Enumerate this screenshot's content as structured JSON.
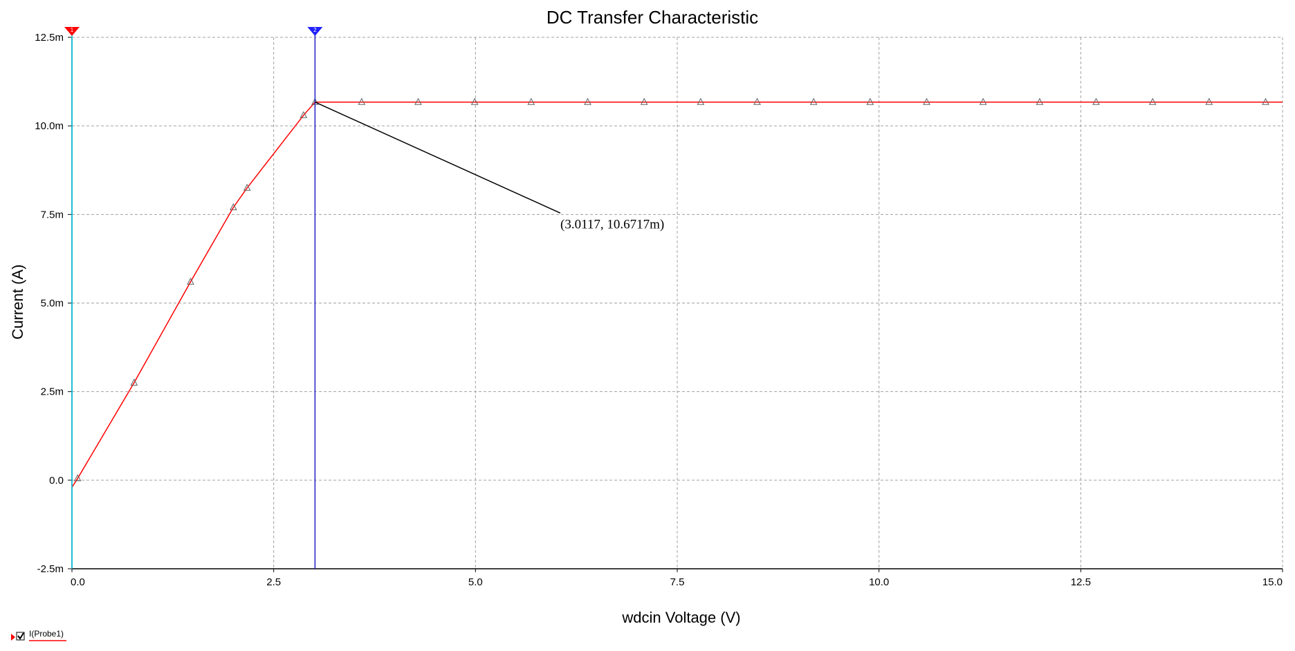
{
  "chart_data": {
    "type": "line",
    "title": "DC Transfer Characteristic",
    "xlabel": "wdcin Voltage (V)",
    "ylabel": "Current (A)",
    "xlim": [
      0,
      15
    ],
    "ylim": [
      -2.5,
      12.5
    ],
    "y_unit_scale": "m",
    "x_ticks": [
      0,
      2.5,
      5,
      7.5,
      10,
      12.5,
      15
    ],
    "x_tick_labels": [
      "0.0",
      "2.5",
      "5.0",
      "7.5",
      "10.0",
      "12.5",
      "15.0"
    ],
    "y_ticks": [
      -2.5,
      0,
      2.5,
      5,
      7.5,
      10,
      12.5
    ],
    "y_tick_labels": [
      "-2.5m",
      "0.0",
      "2.5m",
      "5.0m",
      "7.5m",
      "10.0m",
      "12.5m"
    ],
    "grid": true,
    "series": [
      {
        "name": "I(Probe1)",
        "color": "#ff0000",
        "x": [
          0,
          0.07,
          0.77,
          1.47,
          2.0,
          2.17,
          2.87,
          3.0117,
          3.59,
          4.29,
          4.99,
          5.69,
          6.39,
          7.09,
          7.79,
          8.49,
          9.19,
          9.89,
          10.59,
          11.29,
          11.99,
          12.69,
          13.39,
          14.09,
          14.79,
          15.0
        ],
        "y": [
          -0.2,
          0.05,
          2.75,
          5.6,
          7.7,
          8.25,
          10.3,
          10.6717,
          10.6717,
          10.6717,
          10.6717,
          10.6717,
          10.6717,
          10.6717,
          10.6717,
          10.6717,
          10.6717,
          10.6717,
          10.6717,
          10.6717,
          10.6717,
          10.6717,
          10.6717,
          10.6717,
          10.6717,
          10.6717
        ],
        "marker": "triangle"
      }
    ],
    "cursors": [
      {
        "id": "1",
        "x": 0,
        "color": "#00d0f0",
        "marker_color": "#ff0000"
      },
      {
        "id": "2",
        "x": 3.0117,
        "color": "#2020c0",
        "marker_color": "#2020ff"
      }
    ],
    "annotation": {
      "text": "(3.0117, 10.6717m)",
      "point": [
        3.0117,
        10.6717
      ],
      "label_at": [
        6.0,
        7.5
      ]
    },
    "legend": {
      "placement": "bottom-left",
      "label": "I(Probe1)",
      "checked": true
    }
  }
}
